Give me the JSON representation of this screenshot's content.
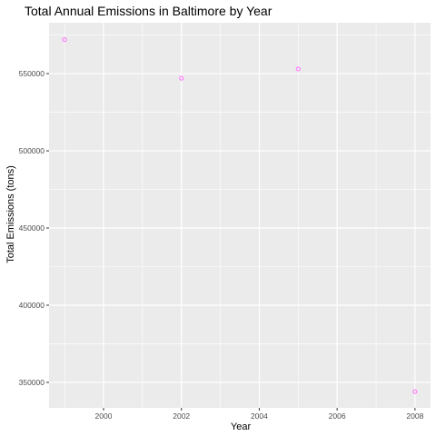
{
  "chart_data": {
    "type": "scatter",
    "title": "Total Annual Emissions in Baltimore by Year",
    "xlabel": "Year",
    "ylabel": "Total Emissions (tons)",
    "x": [
      1999,
      2002,
      2005,
      2008
    ],
    "y": [
      572000,
      547000,
      553000,
      344000
    ],
    "xlim": [
      1998.6,
      2008.4
    ],
    "ylim": [
      333500,
      583000
    ],
    "x_ticks": [
      2000,
      2002,
      2004,
      2006,
      2008
    ],
    "x_tick_labels": [
      "2000",
      "2002",
      "2004",
      "2006",
      "2008"
    ],
    "y_ticks": [
      350000,
      400000,
      450000,
      500000,
      550000
    ],
    "y_tick_labels": [
      "350000",
      "400000",
      "450000",
      "500000",
      "550000"
    ],
    "grid": true,
    "point_color": "#ff77ff",
    "panel_color": "#ebebeb",
    "grid_color": "#ffffff"
  }
}
